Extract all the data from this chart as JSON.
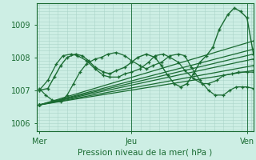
{
  "title": "Pression niveau de la mer( hPa )",
  "xlabel_ticks": [
    "Mer",
    "Jeu",
    "Ven"
  ],
  "xlabel_tick_positions": [
    0.0,
    0.43,
    0.97
  ],
  "ylabel_ticks": [
    1006,
    1007,
    1008,
    1009
  ],
  "ylim": [
    1005.75,
    1009.65
  ],
  "xlim": [
    -0.01,
    1.0
  ],
  "bg_color": "#cdeee4",
  "grid_color": "#aad4c8",
  "line_color": "#1a6b32",
  "series": [
    [
      0.0,
      1006.55
    ],
    [
      0.0,
      1006.55
    ],
    [
      0.0,
      1006.55
    ],
    [
      0.0,
      1006.55
    ],
    [
      0.0,
      1006.55
    ]
  ],
  "straight_lines": [
    {
      "x0": 0.0,
      "y0": 1006.55,
      "x1": 1.0,
      "y1": 1008.5
    },
    {
      "x0": 0.0,
      "y0": 1006.55,
      "x1": 1.0,
      "y1": 1008.25
    },
    {
      "x0": 0.0,
      "y0": 1006.55,
      "x1": 1.0,
      "y1": 1008.1
    },
    {
      "x0": 0.0,
      "y0": 1006.55,
      "x1": 1.0,
      "y1": 1007.95
    },
    {
      "x0": 0.0,
      "y0": 1006.55,
      "x1": 1.0,
      "y1": 1007.75
    },
    {
      "x0": 0.0,
      "y0": 1006.55,
      "x1": 1.0,
      "y1": 1007.6
    }
  ],
  "wavy_line1_x": [
    0.0,
    0.04,
    0.08,
    0.11,
    0.15,
    0.18,
    0.22,
    0.26,
    0.3,
    0.33,
    0.37,
    0.4,
    0.43,
    0.47,
    0.51,
    0.54,
    0.58,
    0.61,
    0.65,
    0.68,
    0.72,
    0.76,
    0.79,
    0.83,
    0.86,
    0.9,
    0.93,
    0.97,
    1.0
  ],
  "wavy_line1_y": [
    1007.0,
    1007.3,
    1007.8,
    1008.05,
    1008.1,
    1008.05,
    1007.9,
    1007.65,
    1007.45,
    1007.4,
    1007.4,
    1007.5,
    1007.55,
    1007.65,
    1007.85,
    1008.05,
    1008.1,
    1008.0,
    1007.85,
    1007.6,
    1007.35,
    1007.2,
    1007.2,
    1007.3,
    1007.45,
    1007.5,
    1007.55,
    1007.55,
    1007.55
  ],
  "wavy_line2_x": [
    0.0,
    0.03,
    0.06,
    0.1,
    0.13,
    0.16,
    0.19,
    0.22,
    0.26,
    0.29,
    0.32,
    0.36,
    0.4,
    0.43,
    0.47,
    0.5,
    0.53,
    0.57,
    0.61,
    0.65,
    0.68,
    0.71,
    0.75,
    0.79,
    0.82,
    0.86,
    0.89,
    0.92,
    0.95,
    0.97,
    1.0
  ],
  "wavy_line2_y": [
    1007.05,
    1006.85,
    1006.7,
    1006.65,
    1006.85,
    1007.2,
    1007.55,
    1007.8,
    1007.95,
    1008.0,
    1008.1,
    1008.15,
    1008.05,
    1007.9,
    1007.75,
    1007.65,
    1007.75,
    1007.85,
    1008.05,
    1008.1,
    1008.05,
    1007.7,
    1007.3,
    1007.0,
    1006.85,
    1006.85,
    1007.0,
    1007.1,
    1007.1,
    1007.1,
    1007.05
  ],
  "peak_line_x": [
    0.0,
    0.04,
    0.07,
    0.1,
    0.13,
    0.17,
    0.2,
    0.23,
    0.26,
    0.3,
    0.33,
    0.36,
    0.4,
    0.43,
    0.46,
    0.5,
    0.54,
    0.57,
    0.6,
    0.63,
    0.66,
    0.69,
    0.72,
    0.75,
    0.78,
    0.81,
    0.84,
    0.88,
    0.91,
    0.94,
    0.97,
    1.0
  ],
  "peak_line_y": [
    1007.0,
    1007.05,
    1007.4,
    1007.75,
    1008.0,
    1008.1,
    1008.05,
    1007.9,
    1007.7,
    1007.55,
    1007.5,
    1007.6,
    1007.7,
    1007.85,
    1008.0,
    1008.1,
    1008.0,
    1007.75,
    1007.45,
    1007.2,
    1007.1,
    1007.2,
    1007.5,
    1007.85,
    1008.05,
    1008.3,
    1008.85,
    1009.3,
    1009.5,
    1009.4,
    1009.2,
    1008.1
  ]
}
